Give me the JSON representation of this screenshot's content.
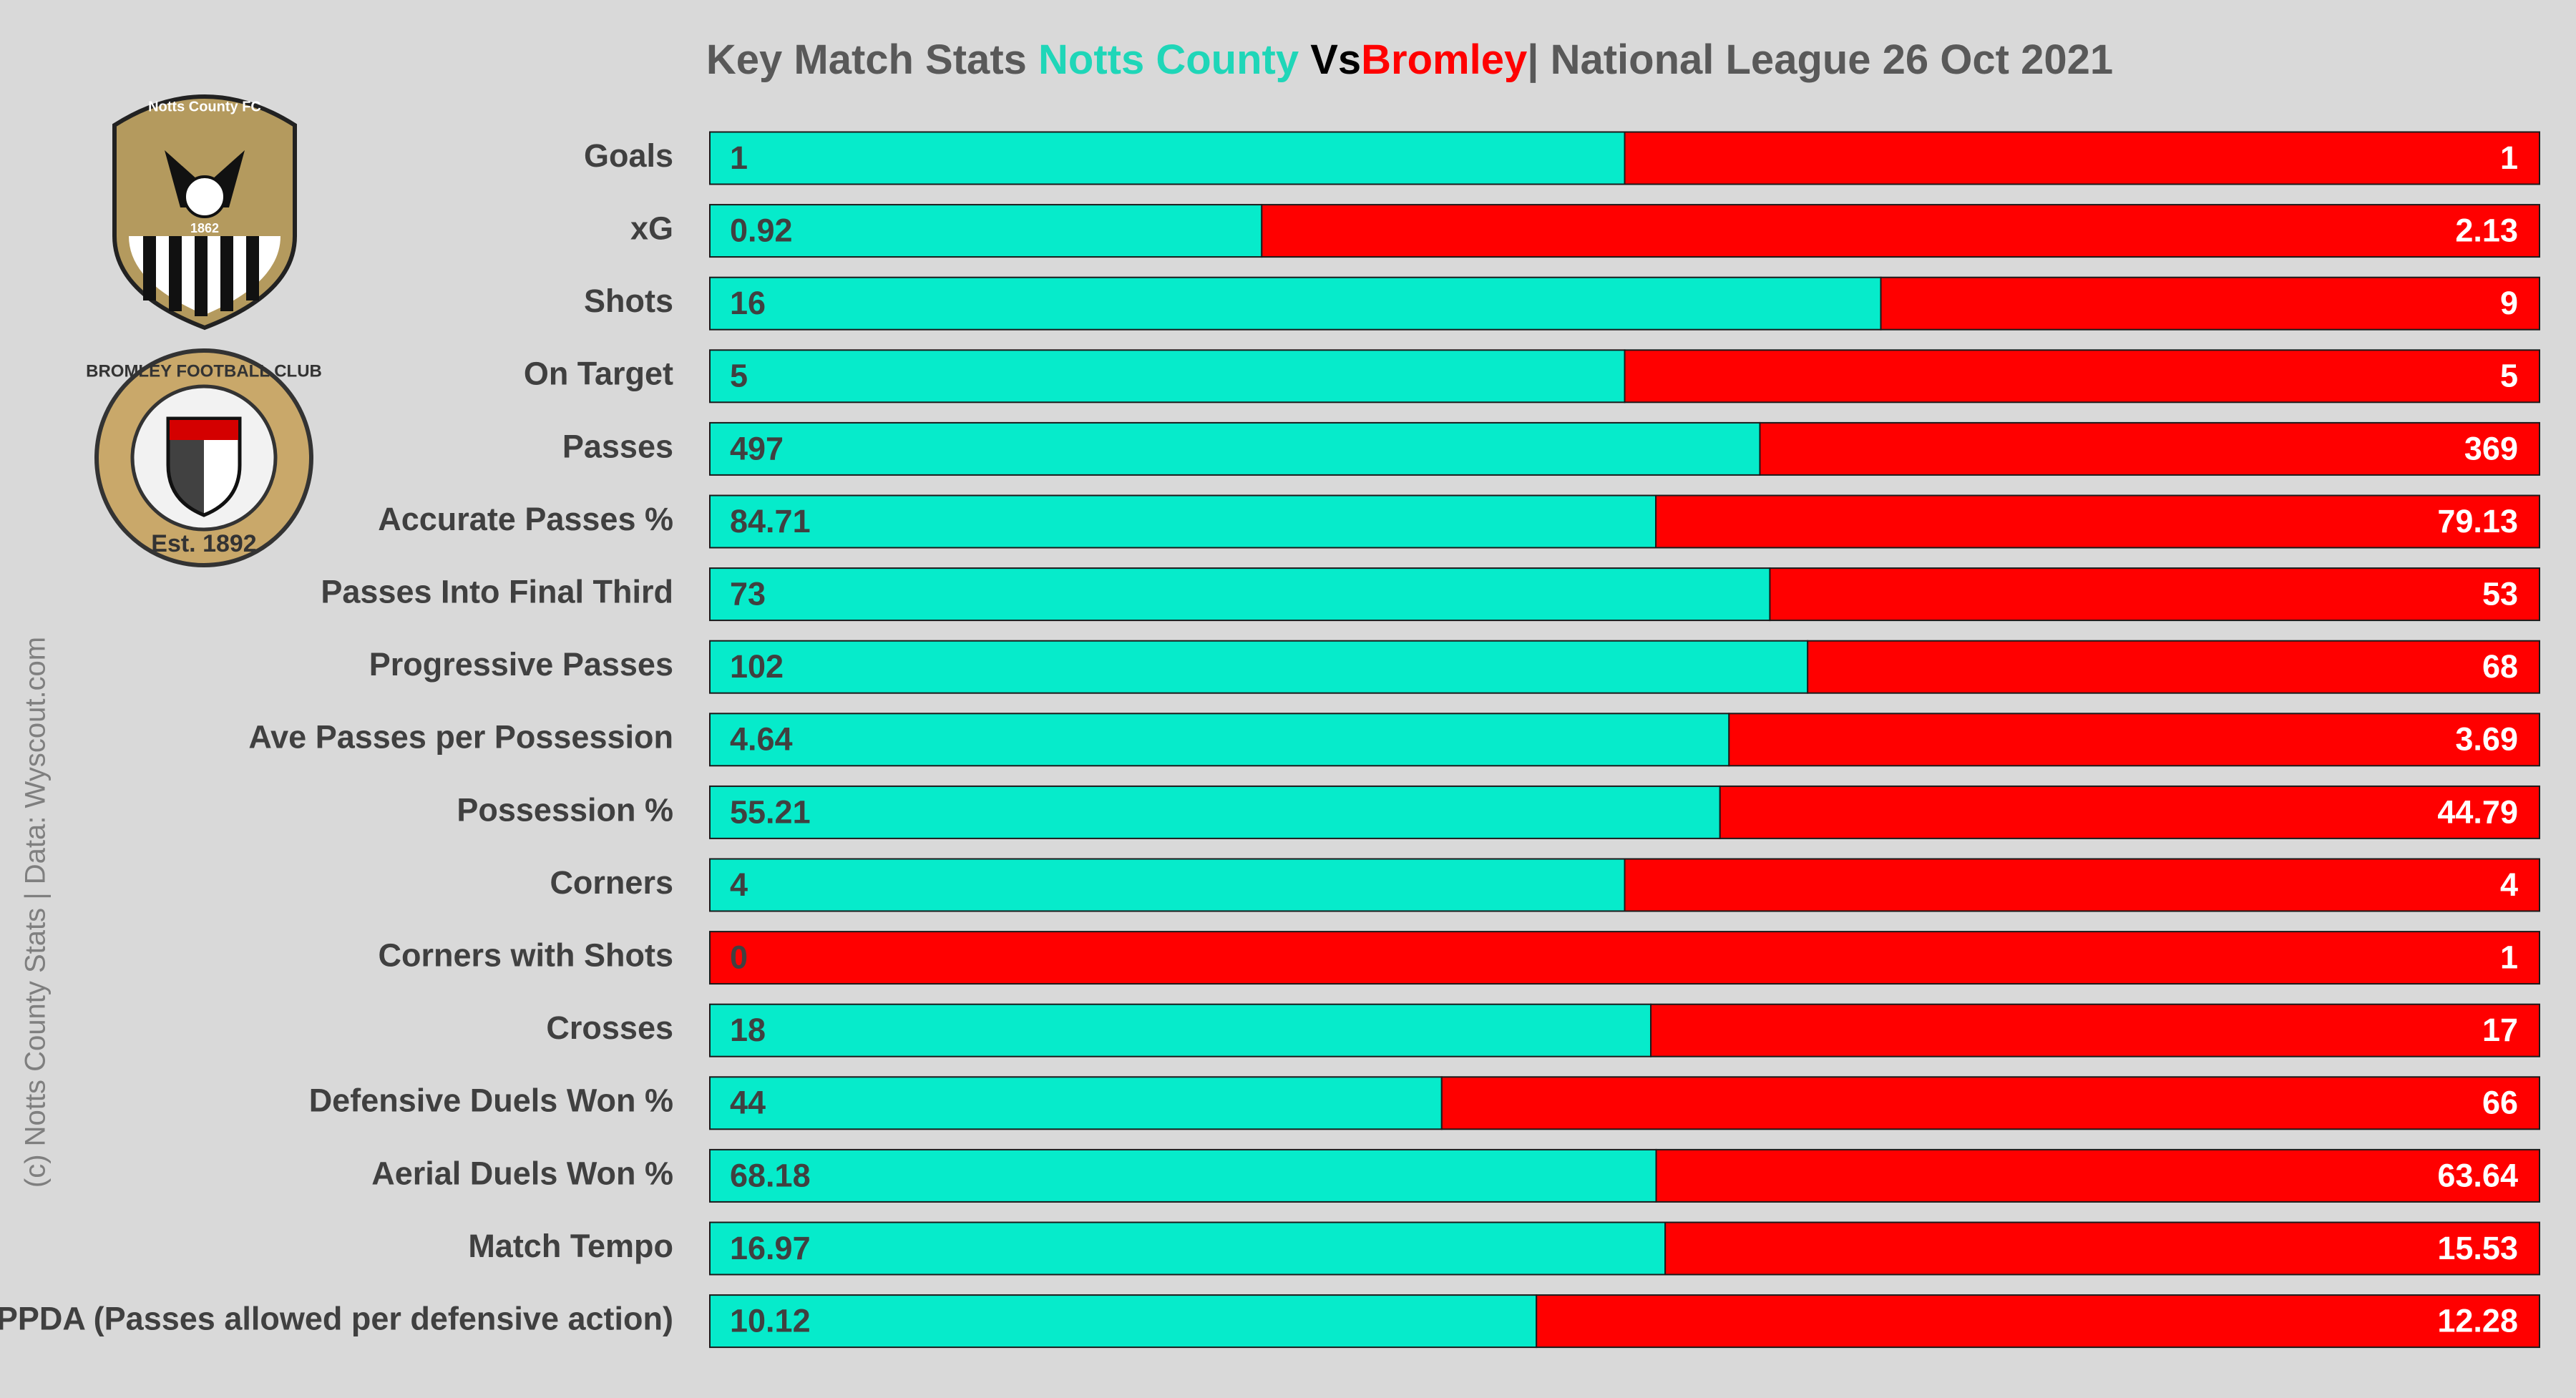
{
  "chart_data": {
    "type": "bar",
    "orientation": "horizontal",
    "stacking": "percent",
    "title": {
      "prefix": "Key Match Stats",
      "connector": "Vs",
      "suffix": "| National League 26 Oct 2021"
    },
    "credit": "(c) Notts County Stats | Data: Wyscout.com",
    "logos": [
      {
        "name": "Notts County FC",
        "year": "1862"
      },
      {
        "name": "BROMLEY FOOTBALL CLUB",
        "est": "Est. 1892"
      }
    ],
    "categories": [
      "Goals",
      "xG",
      "Shots",
      "On Target",
      "Passes",
      "Accurate Passes %",
      "Passes Into Final Third",
      "Progressive Passes",
      "Ave Passes per Possession",
      "Possession %",
      "Corners",
      "Corners with Shots",
      "Crosses",
      "Defensive Duels Won %",
      "Aerial Duels Won %",
      "Match Tempo",
      "PPDA (Passes allowed per defensive action)"
    ],
    "series": [
      {
        "name": "Notts County",
        "color": "#06ebcb",
        "label_color": "#404040",
        "values": [
          1,
          0.92,
          16,
          5,
          497,
          84.71,
          73,
          102,
          4.64,
          55.21,
          4,
          0,
          18,
          44,
          68.18,
          16.97,
          10.12
        ]
      },
      {
        "name": "Bromley",
        "color": "#ff0000",
        "label_color": "#ffffff",
        "values": [
          1,
          2.13,
          9,
          5,
          369,
          79.13,
          53,
          68,
          3.69,
          44.79,
          4,
          1,
          17,
          66,
          63.64,
          15.53,
          12.28
        ]
      }
    ]
  }
}
